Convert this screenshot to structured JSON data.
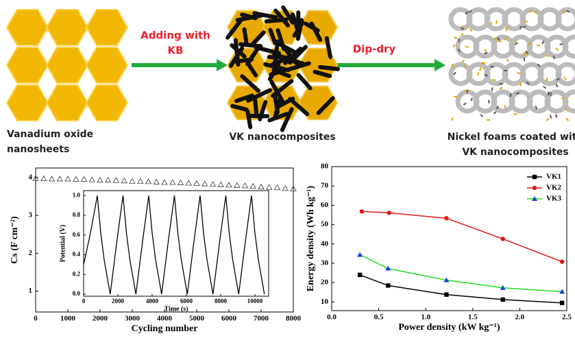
{
  "schematic": {
    "arrow_labels": [
      [
        "Adding with",
        "KB"
      ],
      [
        "Dip-dry"
      ]
    ],
    "captions": [
      [
        "Vanadium oxide",
        "nanosheets"
      ],
      [
        "VK nanocomposites"
      ],
      [
        "Nickel foams coated with",
        "VK nanocomposites"
      ]
    ]
  },
  "chart_data": [
    {
      "type": "scatter",
      "xlabel": "Cycling number",
      "ylabel": "Cs (F cm⁻²)",
      "xlim": [
        0,
        8000
      ],
      "ylim": [
        0.45,
        4.25
      ],
      "xticks": [
        0,
        1000,
        2000,
        3000,
        4000,
        5000,
        6000,
        7000,
        8000
      ],
      "yticks": [
        1,
        2,
        3,
        4
      ],
      "series": [
        {
          "color": "#333333",
          "marker": "triangle-open",
          "x": [
            0,
            250,
            500,
            750,
            1000,
            1250,
            1500,
            1750,
            2000,
            2250,
            2500,
            2750,
            3000,
            3250,
            3500,
            3750,
            4000,
            4250,
            4500,
            4750,
            5000,
            5250,
            5500,
            5750,
            6000,
            6250,
            6500,
            6750,
            7000,
            7250,
            7500,
            7750,
            8000
          ],
          "values": [
            3.97,
            3.97,
            3.96,
            3.96,
            3.96,
            3.95,
            3.95,
            3.94,
            3.93,
            3.93,
            3.92,
            3.91,
            3.9,
            3.9,
            3.89,
            3.88,
            3.87,
            3.87,
            3.86,
            3.85,
            3.84,
            3.83,
            3.82,
            3.81,
            3.8,
            3.79,
            3.78,
            3.77,
            3.75,
            3.74,
            3.73,
            3.71,
            3.7
          ]
        }
      ]
    },
    {
      "type": "line",
      "xlabel": "Time (s)",
      "ylabel": "Potential (V)",
      "xlim": [
        0,
        10800
      ],
      "ylim": [
        -0.02,
        1.05
      ],
      "xticks": [
        0,
        2000,
        4000,
        6000,
        8000,
        10000
      ],
      "yticks": [
        {
          "value": 0,
          "label": "0.0"
        },
        {
          "value": 0.2,
          "label": "0.2"
        },
        {
          "value": 0.4,
          "label": "0.4"
        },
        {
          "value": 0.6,
          "label": "0.6"
        },
        {
          "value": 0.8,
          "label": "0.8"
        },
        {
          "value": 1,
          "label": "1.0"
        }
      ],
      "series": [
        {
          "color": "#000000",
          "x": [
            0,
            400,
            800,
            1000,
            1200,
            1550,
            1950,
            2300,
            2500,
            2700,
            3050,
            3450,
            3800,
            4000,
            4200,
            4550,
            4950,
            5300,
            5500,
            5700,
            6050,
            6450,
            6800,
            7000,
            7200,
            7550,
            7950,
            8300,
            8500,
            8700,
            9050,
            9450,
            9800,
            10000,
            10200,
            10550
          ],
          "values": [
            0.3,
            0.62,
            1,
            0.62,
            0.35,
            0,
            0.55,
            1,
            0.62,
            0.35,
            0,
            0.55,
            1,
            0.62,
            0.35,
            0,
            0.55,
            1,
            0.62,
            0.35,
            0,
            0.55,
            1,
            0.62,
            0.35,
            0,
            0.55,
            1,
            0.62,
            0.35,
            0,
            0.55,
            1,
            0.62,
            0.35,
            0
          ]
        }
      ]
    },
    {
      "type": "line",
      "xlabel": "Power density (kW kg⁻¹)",
      "ylabel": "Energy density (Wh kg⁻¹)",
      "xlim": [
        0,
        2.5
      ],
      "ylim": [
        5.5,
        80
      ],
      "xticks": [
        {
          "value": 0,
          "label": "0.0"
        },
        {
          "value": 0.5,
          "label": "0.5"
        },
        {
          "value": 1,
          "label": "1.0"
        },
        {
          "value": 1.5,
          "label": "1.5"
        },
        {
          "value": 2,
          "label": "2.0"
        },
        {
          "value": 2.5,
          "label": "2.5"
        }
      ],
      "yticks": [
        10,
        20,
        30,
        40,
        50,
        60,
        70,
        80
      ],
      "legend": "upper right",
      "series": [
        {
          "name": "VK1",
          "color": "#000000",
          "marker": "square",
          "marker_color": "#000000",
          "x": [
            0.3,
            0.6,
            1.22,
            1.82,
            2.45
          ],
          "values": [
            24,
            18.5,
            13.8,
            11.2,
            9.5
          ]
        },
        {
          "name": "VK2",
          "color": "#e01818",
          "marker": "circle",
          "marker_color": "#e01818",
          "x": [
            0.32,
            0.61,
            1.22,
            1.82,
            2.45
          ],
          "values": [
            56.8,
            56.1,
            53.3,
            42.6,
            30.8
          ]
        },
        {
          "name": "VK3",
          "color": "#22dd22",
          "marker": "triangle",
          "marker_color": "#1a3fd6",
          "x": [
            0.3,
            0.6,
            1.22,
            1.82,
            2.45
          ],
          "values": [
            34.4,
            27.3,
            21.3,
            17.3,
            15.3
          ]
        }
      ]
    }
  ]
}
